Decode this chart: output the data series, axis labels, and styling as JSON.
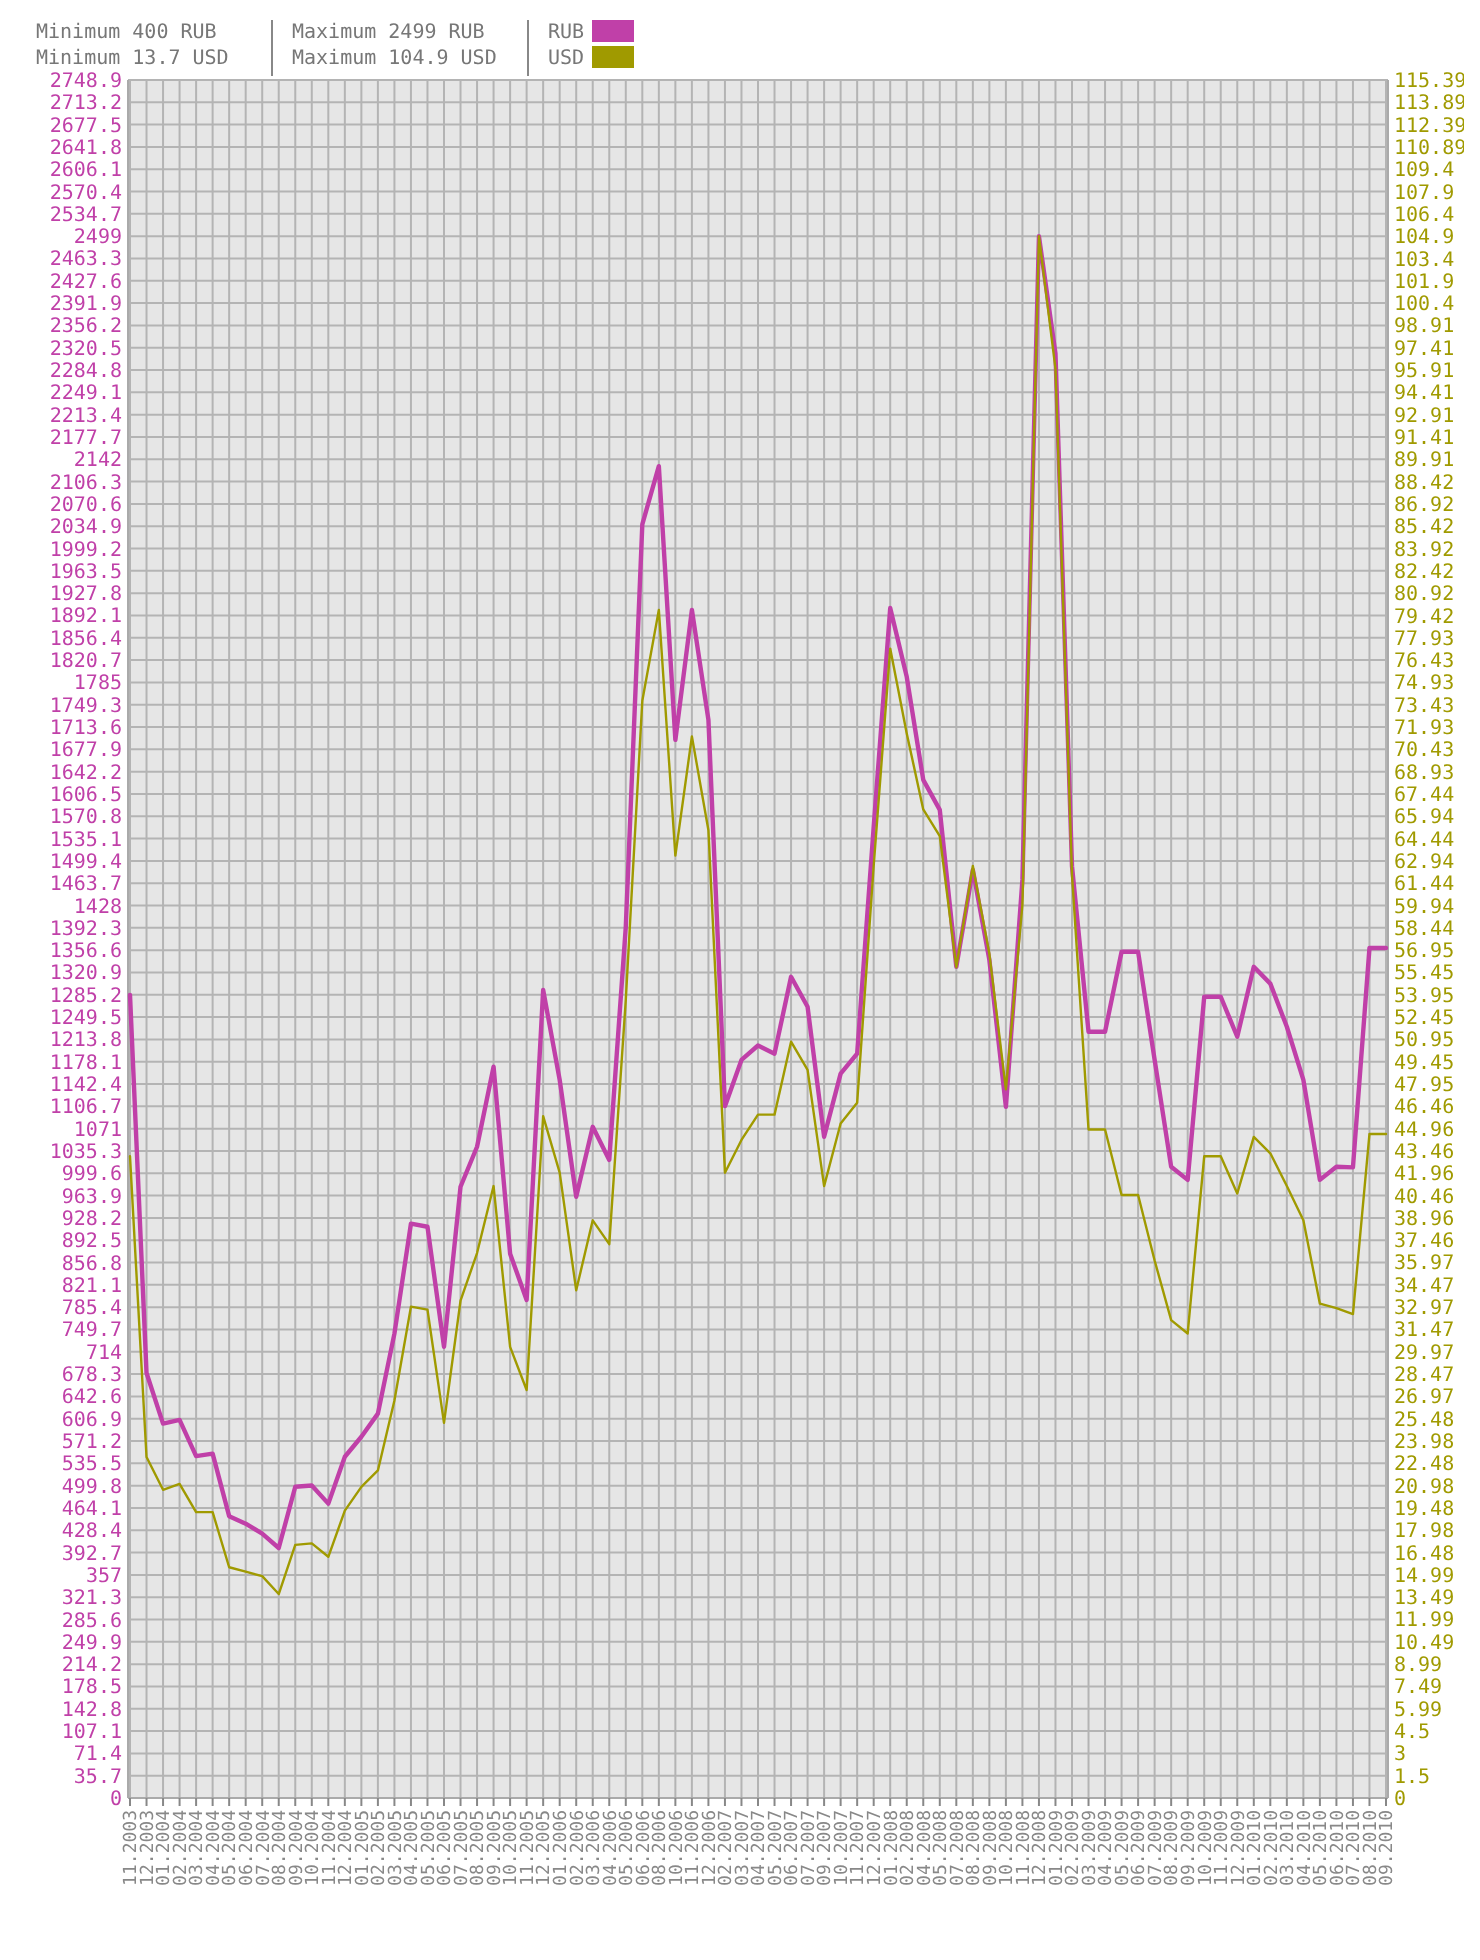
{
  "chart_data": {
    "type": "line",
    "categories": [
      "11.2003",
      "12.2003",
      "01.2004",
      "02.2004",
      "03.2004",
      "04.2004",
      "05.2004",
      "06.2004",
      "07.2004",
      "08.2004",
      "09.2004",
      "10.2004",
      "11.2004",
      "12.2004",
      "01.2005",
      "02.2005",
      "03.2005",
      "04.2005",
      "05.2005",
      "06.2005",
      "07.2005",
      "08.2005",
      "09.2005",
      "10.2005",
      "11.2005",
      "12.2005",
      "01.2006",
      "02.2006",
      "03.2006",
      "04.2006",
      "05.2006",
      "06.2006",
      "08.2006",
      "10.2006",
      "11.2006",
      "12.2006",
      "02.2007",
      "03.2007",
      "04.2007",
      "05.2007",
      "06.2007",
      "07.2007",
      "09.2007",
      "10.2007",
      "11.2007",
      "12.2007",
      "01.2008",
      "02.2008",
      "04.2008",
      "05.2008",
      "07.2008",
      "08.2008",
      "09.2008",
      "10.2008",
      "11.2008",
      "12.2008",
      "01.2009",
      "02.2009",
      "03.2009",
      "04.2009",
      "05.2009",
      "06.2009",
      "07.2009",
      "08.2009",
      "09.2009",
      "10.2009",
      "11.2009",
      "12.2009",
      "01.2010",
      "02.2010",
      "03.2010",
      "04.2010",
      "05.2010",
      "06.2010",
      "07.2010",
      "08.2010",
      "09.2010"
    ],
    "series": [
      {
        "name": "RUB",
        "color": "#c040a8",
        "values": [
          1285,
          680,
          599,
          605,
          547,
          551,
          451,
          439,
          423,
          400,
          498,
          500,
          471,
          546,
          578,
          615,
          743,
          919,
          914,
          722,
          978,
          1042,
          1170,
          871,
          797,
          1293,
          1149,
          962,
          1074,
          1021,
          1394,
          2038,
          2131,
          1693,
          1901,
          1725,
          1107,
          1181,
          1204,
          1191,
          1314,
          1266,
          1058,
          1159,
          1191,
          1554,
          1904,
          1794,
          1629,
          1581,
          1330,
          1485,
          1341,
          1106,
          1469,
          2499,
          2311,
          1491,
          1226,
          1226,
          1354,
          1354,
          1181,
          1010,
          989,
          1282,
          1282,
          1218,
          1330,
          1303,
          1234,
          1149,
          989,
          1010,
          1009,
          1360,
          1360
        ]
      },
      {
        "name": "USD",
        "color": "#a09a00",
        "axis": "y2",
        "values": [
          43.1,
          22.9,
          20.7,
          21.1,
          19.2,
          19.2,
          15.5,
          15.2,
          14.9,
          13.7,
          17.0,
          17.1,
          16.2,
          19.3,
          20.9,
          22.0,
          26.7,
          33.0,
          32.8,
          25.2,
          33.4,
          36.6,
          41.1,
          30.3,
          27.4,
          45.8,
          42.0,
          34.1,
          38.8,
          37.2,
          53.6,
          73.7,
          79.8,
          63.3,
          71.3,
          65.0,
          42.0,
          44.2,
          45.9,
          45.9,
          50.8,
          48.9,
          41.1,
          45.3,
          46.7,
          62.6,
          77.2,
          71.5,
          66.4,
          64.6,
          55.8,
          62.6,
          56.7,
          47.6,
          60.0,
          104.9,
          96.0,
          62.0,
          44.9,
          44.9,
          40.5,
          40.5,
          36.1,
          32.1,
          31.2,
          43.1,
          43.1,
          40.6,
          44.4,
          43.3,
          41.1,
          38.8,
          33.2,
          32.9,
          32.5,
          44.6,
          44.6
        ]
      }
    ],
    "ylim": [
      0,
      2748.9
    ],
    "yticks": [
      0,
      35.7,
      71.4,
      107.1,
      142.8,
      178.5,
      214.2,
      249.9,
      285.6,
      321.3,
      357,
      392.7,
      428.4,
      464.1,
      499.8,
      535.5,
      571.2,
      606.9,
      642.6,
      678.3,
      714,
      749.7,
      785.4,
      821.1,
      856.8,
      892.5,
      928.2,
      963.9,
      999.6,
      1035.3,
      1071,
      1106.7,
      1142.4,
      1178.1,
      1213.8,
      1249.5,
      1285.2,
      1320.9,
      1356.6,
      1392.3,
      1428,
      1463.7,
      1499.4,
      1535.1,
      1570.8,
      1606.5,
      1642.2,
      1677.9,
      1713.6,
      1749.3,
      1785,
      1820.7,
      1856.4,
      1892.1,
      1927.8,
      1963.5,
      1999.2,
      2034.9,
      2070.6,
      2106.3,
      2142,
      2177.7,
      2213.4,
      2249.1,
      2284.8,
      2320.5,
      2356.2,
      2391.9,
      2427.6,
      2463.3,
      2499,
      2534.7,
      2570.4,
      2606.1,
      2641.8,
      2677.5,
      2713.2,
      2748.9
    ],
    "y2lim": [
      0,
      115.39
    ],
    "y2ticks": [
      0,
      1.5,
      3,
      4.5,
      5.99,
      7.49,
      8.99,
      10.49,
      11.99,
      13.49,
      14.99,
      16.48,
      17.98,
      19.48,
      20.98,
      22.48,
      23.98,
      25.48,
      26.97,
      28.47,
      29.97,
      31.47,
      32.97,
      34.47,
      35.97,
      37.46,
      38.96,
      40.46,
      41.96,
      43.46,
      44.96,
      46.46,
      47.95,
      49.45,
      50.95,
      52.45,
      53.95,
      55.45,
      56.95,
      58.44,
      59.94,
      61.44,
      62.94,
      64.44,
      65.94,
      67.44,
      68.93,
      70.43,
      71.93,
      73.43,
      74.93,
      76.43,
      77.93,
      79.42,
      80.92,
      82.42,
      83.92,
      85.42,
      86.92,
      88.42,
      89.91,
      91.41,
      92.91,
      94.41,
      95.91,
      97.41,
      98.91,
      100.4,
      101.9,
      103.4,
      104.9,
      106.4,
      107.9,
      109.4,
      110.89,
      112.39,
      113.89,
      115.39
    ],
    "grid": true,
    "legend": "top",
    "annotations": [
      "Minimum 400 RUB",
      "Minimum 13.7 USD",
      "Maximum 2499 RUB",
      "Maximum 104.9 USD"
    ]
  }
}
